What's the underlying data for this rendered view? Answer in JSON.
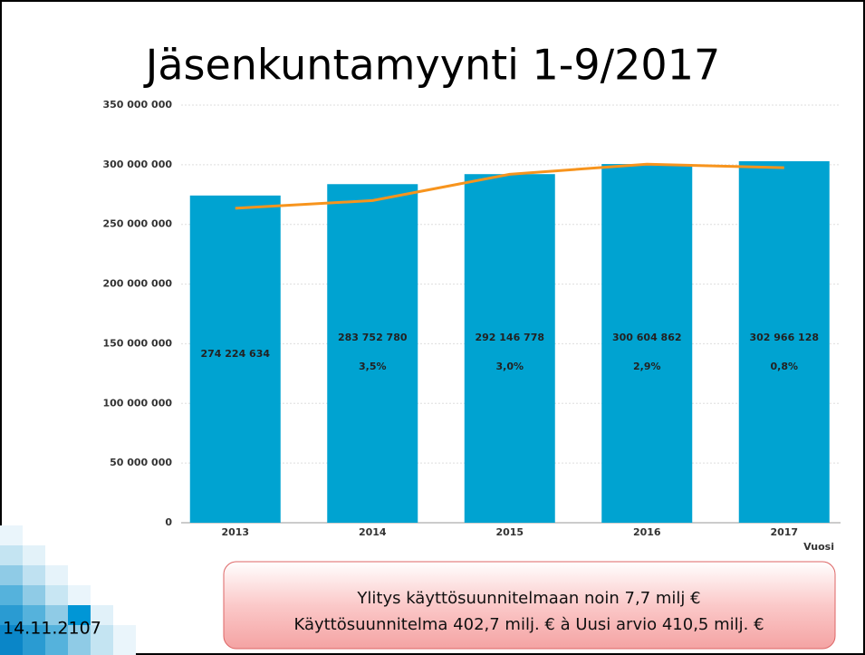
{
  "chart_data": {
    "type": "bar",
    "title": "Jäsenkuntamyynti 1-9/2017",
    "x_label": "Vuosi",
    "categories": [
      "2013",
      "2014",
      "2015",
      "2016",
      "2017"
    ],
    "series": [
      {
        "type": "bar",
        "color": "#00a3d1",
        "values": [
          274224634,
          283752780,
          292146778,
          300604862,
          302966128
        ],
        "value_labels": [
          "274 224 634",
          "283 752 780",
          "292 146 778",
          "300 604 862",
          "302 966 128"
        ],
        "change_labels": [
          null,
          "3,5%",
          "3,0%",
          "2,9%",
          "0,8%"
        ]
      },
      {
        "type": "line",
        "color": "#f7941d",
        "values": [
          263500000,
          270000000,
          292000000,
          300500000,
          297500000
        ]
      }
    ],
    "ylim": [
      0,
      350000000
    ],
    "yticks": [
      0,
      {
        "value": 50000000,
        "label": "50 000 000"
      },
      {
        "value": 100000000,
        "label": "100 000 000"
      },
      {
        "value": 150000000,
        "label": "150 000 000"
      },
      {
        "value": 200000000,
        "label": "200 000 000"
      },
      {
        "value": 250000000,
        "label": "250 000 000"
      },
      {
        "value": 300000000,
        "label": "300 000 000"
      },
      {
        "value": 350000000,
        "label": "350 000 000"
      }
    ],
    "grid": true
  },
  "callout": {
    "lines": [
      "Ylitys käyttösuunnitelmaan noin 7,7 milj €",
      "Käyttösuunnitelma 402,7 milj. € à  Uusi arvio 410,5 milj. €"
    ]
  },
  "footer": {
    "date": "14.11.2107"
  }
}
